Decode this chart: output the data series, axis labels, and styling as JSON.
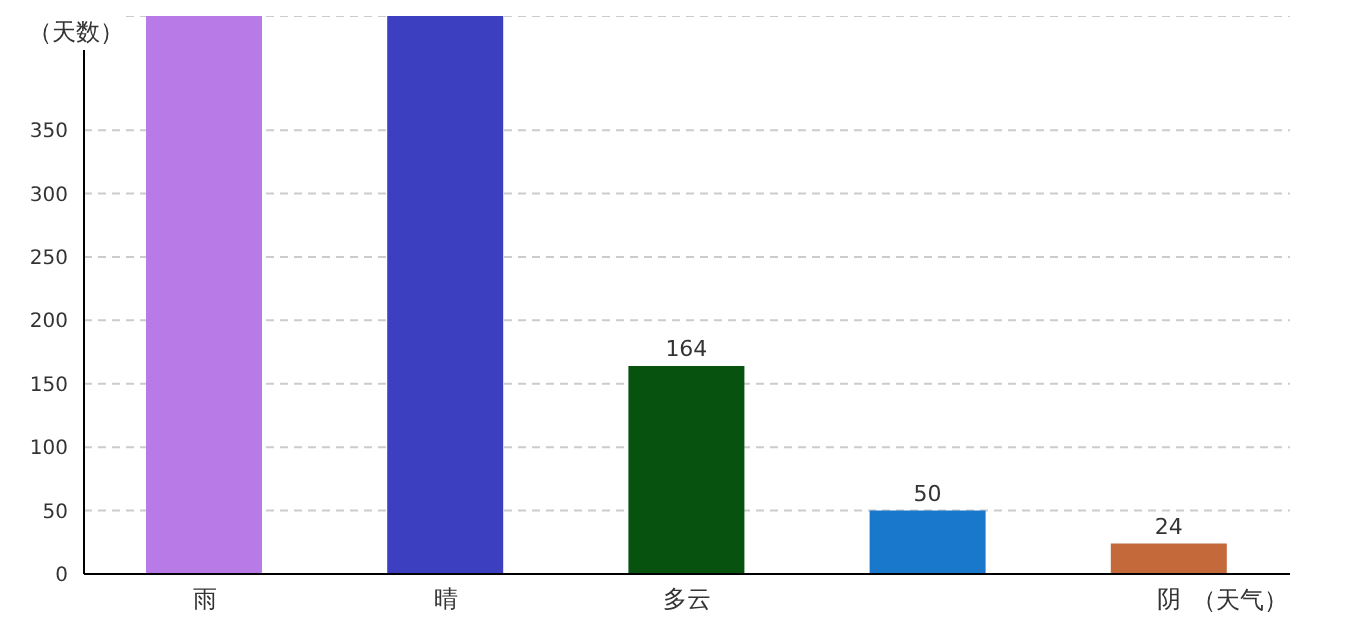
{
  "chart_data": {
    "type": "bar",
    "xlabel": "（天气）",
    "ylabel": "（天数）",
    "categories": [
      "雨",
      "晴",
      "多云",
      null,
      "阴"
    ],
    "values": [
      440,
      440,
      164,
      50,
      24
    ],
    "colors": [
      "#b77ae6",
      "#3c3fbf",
      "#07520f",
      "#1a78cc",
      "#c3693a"
    ],
    "value_labels": [
      null,
      null,
      "164",
      "50",
      "24"
    ],
    "ylim": [
      0,
      440
    ],
    "yticks": [
      0,
      50,
      100,
      150,
      200,
      250,
      300,
      350
    ],
    "grid": "y"
  }
}
